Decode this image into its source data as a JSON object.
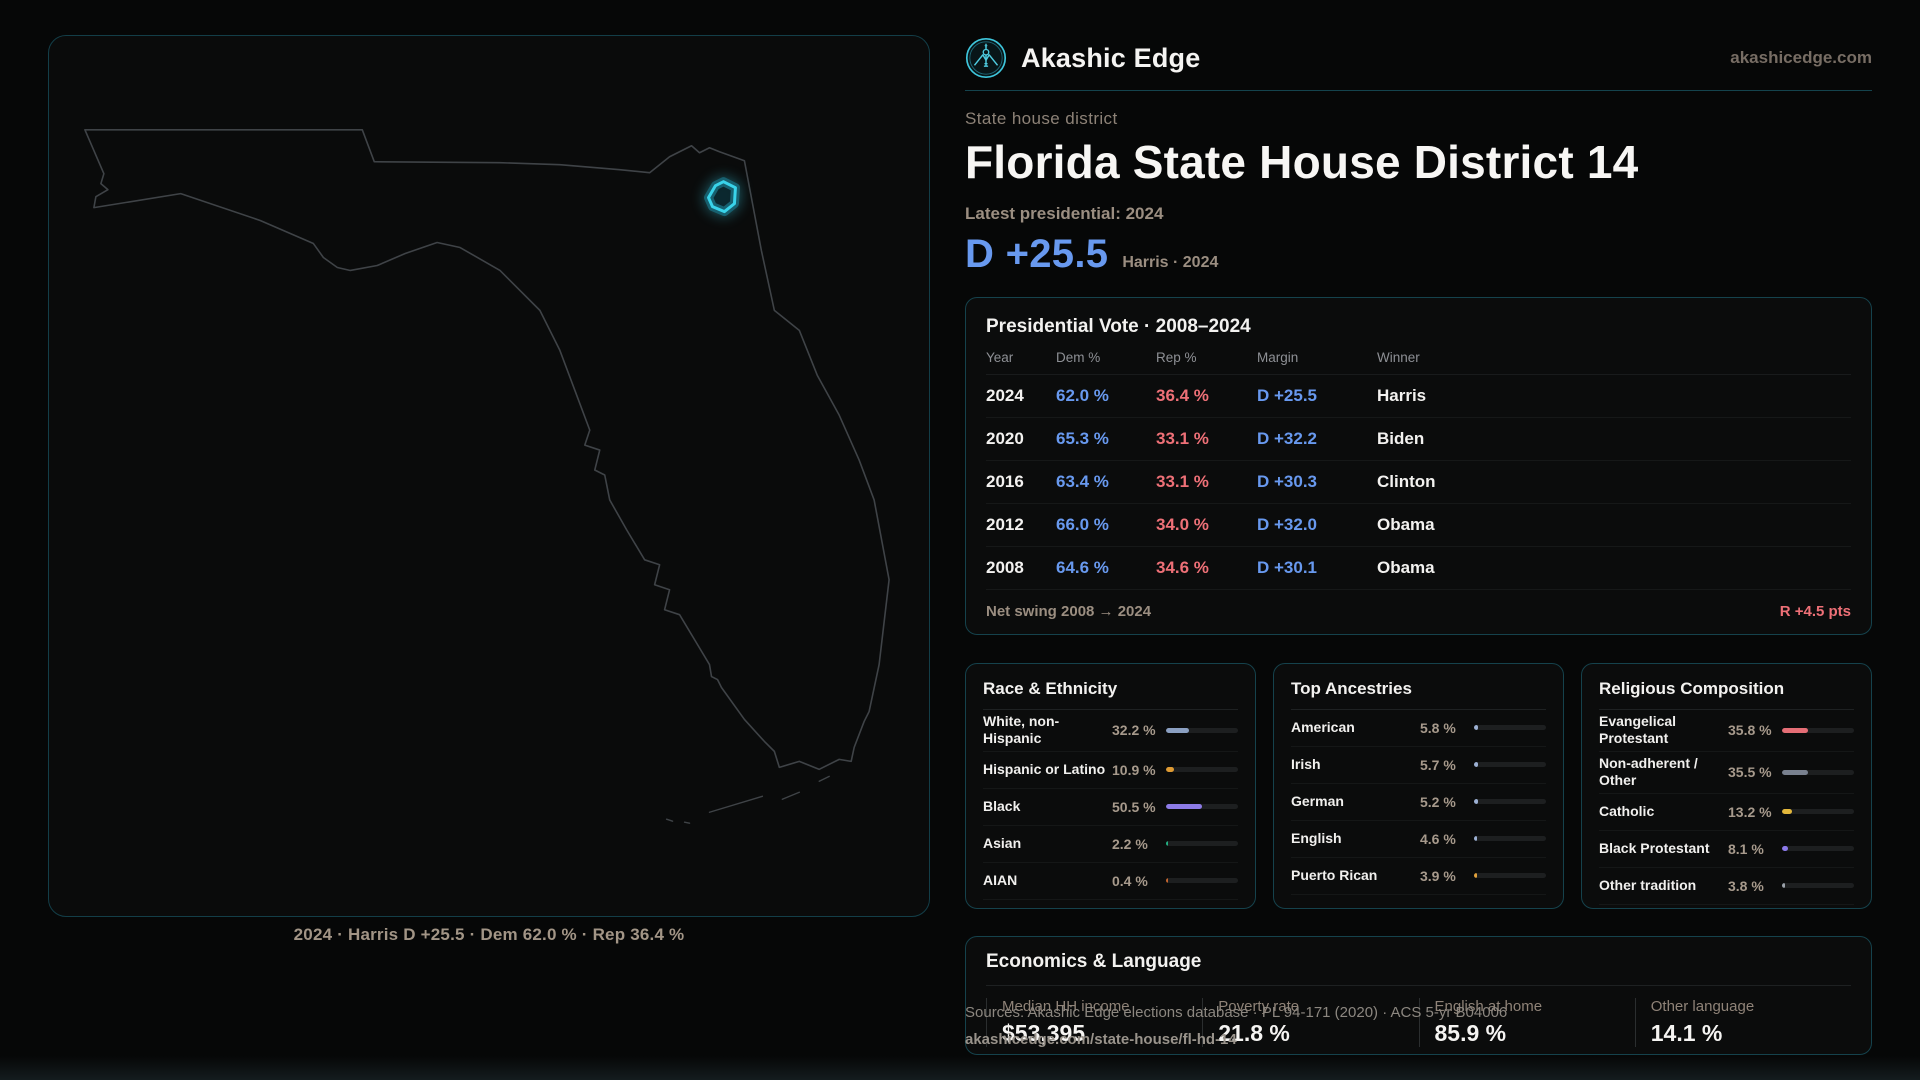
{
  "brand": {
    "name": "Akashic Edge",
    "domain": "akashicedge.com"
  },
  "header": {
    "kicker": "State house district",
    "title": "Florida State House District 14",
    "latest": "Latest presidential: 2024",
    "margin_big": "D +25.5",
    "margin_context": "Harris · 2024"
  },
  "map": {
    "caption": "2024 · Harris D +25.5 · Dem 62.0 % · Rep 36.4 %"
  },
  "presidential": {
    "title": "Presidential Vote · 2008–2024",
    "columns": [
      "Year",
      "Dem %",
      "Rep %",
      "Margin",
      "Winner"
    ],
    "rows": [
      {
        "year": "2024",
        "dem": "62.0 %",
        "rep": "36.4 %",
        "margin": "D +25.5",
        "winner": "Harris"
      },
      {
        "year": "2020",
        "dem": "65.3 %",
        "rep": "33.1 %",
        "margin": "D +32.2",
        "winner": "Biden"
      },
      {
        "year": "2016",
        "dem": "63.4 %",
        "rep": "33.1 %",
        "margin": "D +30.3",
        "winner": "Clinton"
      },
      {
        "year": "2012",
        "dem": "66.0 %",
        "rep": "34.0 %",
        "margin": "D +32.0",
        "winner": "Obama"
      },
      {
        "year": "2008",
        "dem": "64.6 %",
        "rep": "34.6 %",
        "margin": "D +30.1",
        "winner": "Obama"
      }
    ],
    "net_swing_label": "Net swing 2008 → 2024",
    "net_swing_value": "R +4.5 pts"
  },
  "race": {
    "title": "Race & Ethnicity",
    "rows": [
      {
        "label": "White, non-Hispanic",
        "value": "32.2 %",
        "pct": 32.2,
        "color": "#8ba0c2"
      },
      {
        "label": "Hispanic or Latino",
        "value": "10.9 %",
        "pct": 10.9,
        "color": "#df9b33"
      },
      {
        "label": "Black",
        "value": "50.5 %",
        "pct": 50.5,
        "color": "#8d7be7"
      },
      {
        "label": "Asian",
        "value": "2.2 %",
        "pct": 2.2,
        "color": "#23b183"
      },
      {
        "label": "AIAN",
        "value": "0.4 %",
        "pct": 0.4,
        "color": "#c4652f"
      }
    ]
  },
  "ancestries": {
    "title": "Top Ancestries",
    "rows": [
      {
        "label": "American",
        "value": "5.8 %",
        "pct": 5.8,
        "color": "#9db1d4"
      },
      {
        "label": "Irish",
        "value": "5.7 %",
        "pct": 5.7,
        "color": "#9db1d4"
      },
      {
        "label": "German",
        "value": "5.2 %",
        "pct": 5.2,
        "color": "#9db1d4"
      },
      {
        "label": "English",
        "value": "4.6 %",
        "pct": 4.6,
        "color": "#9db1d4"
      },
      {
        "label": "Puerto Rican",
        "value": "3.9 %",
        "pct": 3.9,
        "color": "#e2a23c"
      }
    ]
  },
  "religion": {
    "title": "Religious Composition",
    "rows": [
      {
        "label": "Evangelical Protestant",
        "value": "35.8 %",
        "pct": 35.8,
        "color": "#e56e76"
      },
      {
        "label": "Non-adherent / Other",
        "value": "35.5 %",
        "pct": 35.5,
        "color": "#79818f"
      },
      {
        "label": "Catholic",
        "value": "13.2 %",
        "pct": 13.2,
        "color": "#e3b73b"
      },
      {
        "label": "Black Protestant",
        "value": "8.1 %",
        "pct": 8.1,
        "color": "#8b79ea"
      },
      {
        "label": "Other tradition",
        "value": "3.8 %",
        "pct": 3.8,
        "color": "#9aa1a9"
      }
    ]
  },
  "economics": {
    "title": "Economics & Language",
    "stats": [
      {
        "label": "Median HH income",
        "value": "$53,395"
      },
      {
        "label": "Poverty rate",
        "value": "21.8 %"
      },
      {
        "label": "English at home",
        "value": "85.9 %"
      },
      {
        "label": "Other language",
        "value": "14.1 %"
      }
    ]
  },
  "footer": {
    "sources": "Sources: Akashic Edge elections database · PL 94-171 (2020) · ACS 5-yr B04006",
    "permalink": "akashicedge.com/state-house/fl-hd-14"
  },
  "colors": {
    "dem_blue": "#6899ef",
    "rep_red": "#ee7077",
    "swing_red": "#ee7077",
    "district_cyan": "#39d3ea",
    "brand_cyan": "#45c8de",
    "panel_border_teal": "#15424c"
  }
}
